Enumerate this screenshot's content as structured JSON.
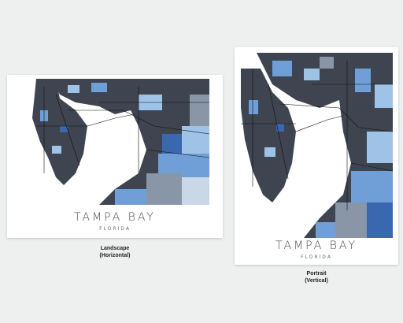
{
  "landscape": {
    "city": "TAMPA BAY",
    "state": "FLORIDA",
    "caption_line1": "Landscape",
    "caption_line2": "(Horizontal)"
  },
  "portrait": {
    "city": "TAMPA BAY",
    "state": "FLORIDA",
    "caption_line1": "Portrait",
    "caption_line2": "(Vertical)"
  },
  "colors": {
    "background": "#eef0ef",
    "paper": "#ffffff",
    "land_dark": "#3e4450",
    "blue_light": "#9fc3e6",
    "blue_mid": "#6f9fd6",
    "blue_deep": "#3a68b0",
    "slate": "#8896a8",
    "text": "#4a4a4a"
  }
}
